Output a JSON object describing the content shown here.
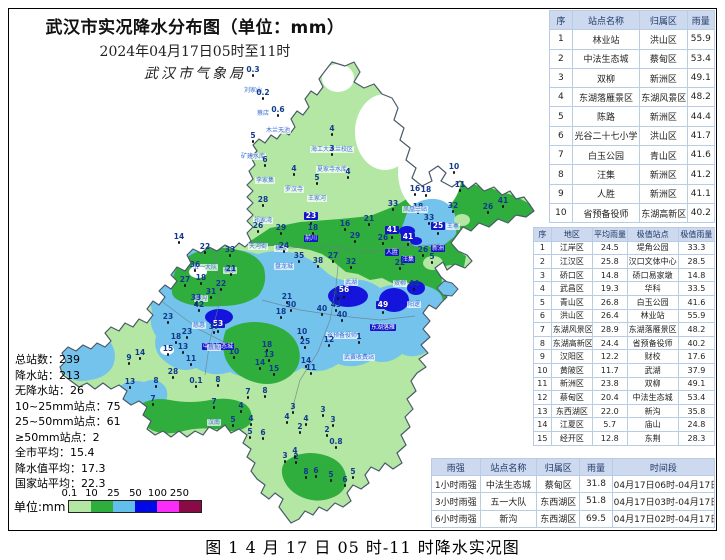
{
  "title": "武汉市实况降水分布图（单位：mm）",
  "subtitle": "2024年04月17日05时至11时",
  "agency": "武汉市气象局",
  "caption": "图 1 4 月 17 日 05 时-11 时降水实况图",
  "stats": [
    "总站数：239",
    "降水站：213",
    "无降水站：26",
    "10~25mm站点：75",
    "25~50mm站点：61",
    "≥50mm站点：2",
    "全市平均：15.4",
    "降水值平均：17.3",
    "国家站平均：22.3"
  ],
  "legend": {
    "label": "单位:mm",
    "ticks": [
      "0.1",
      "10",
      "25",
      "50",
      "100",
      "250"
    ],
    "colors": [
      "#b4e7a4",
      "#2fae3e",
      "#62bfec",
      "#0008e6",
      "#fa2cfa",
      "#8a0a45"
    ]
  },
  "map_colors": {
    "light_green": "#b4e7a4",
    "green": "#2fae3e",
    "light_blue": "#74c3ec",
    "dark_blue": "#1414dc",
    "none": "#ffffff",
    "boundary": "#4a5a6a"
  },
  "top_table": {
    "headers": [
      "序",
      "站点名称",
      "归属区",
      "雨量"
    ],
    "rows": [
      [
        "1",
        "林业站",
        "洪山区",
        "55.9"
      ],
      [
        "2",
        "中法生态城",
        "蔡甸区",
        "53.4"
      ],
      [
        "3",
        "双柳",
        "新洲区",
        "49.1"
      ],
      [
        "4",
        "东湖落雁景区",
        "东湖风景区",
        "48.2"
      ],
      [
        "5",
        "陈路",
        "新洲区",
        "44.4"
      ],
      [
        "6",
        "光谷二十七小学",
        "洪山区",
        "41.7"
      ],
      [
        "7",
        "白玉公园",
        "青山区",
        "41.6"
      ],
      [
        "8",
        "汪集",
        "新洲区",
        "41.2"
      ],
      [
        "9",
        "人胜",
        "新洲区",
        "41.1"
      ],
      [
        "10",
        "省预备役师",
        "东湖高新区",
        "40.2"
      ]
    ]
  },
  "district_table": {
    "headers": [
      "序",
      "地区",
      "平均雨量",
      "极值站点",
      "极值雨量"
    ],
    "rows": [
      [
        "1",
        "江岸区",
        "24.5",
        "堤角公园",
        "33.3"
      ],
      [
        "2",
        "江汉区",
        "25.8",
        "汉口文体中心",
        "28.5"
      ],
      [
        "3",
        "硚口区",
        "14.8",
        "硚口易家墩",
        "14.8"
      ],
      [
        "4",
        "武昌区",
        "19.3",
        "华科",
        "33.5"
      ],
      [
        "5",
        "青山区",
        "26.8",
        "白玉公园",
        "41.6"
      ],
      [
        "6",
        "洪山区",
        "26.4",
        "林业站",
        "55.9"
      ],
      [
        "7",
        "东湖风景区",
        "28.9",
        "东湖落雁景区",
        "48.2"
      ],
      [
        "8",
        "东湖高新区",
        "24.4",
        "省预备役师",
        "40.2"
      ],
      [
        "9",
        "汉阳区",
        "12.2",
        "财校",
        "17.6"
      ],
      [
        "10",
        "黄陂区",
        "11.7",
        "武湖",
        "37.9"
      ],
      [
        "11",
        "新洲区",
        "23.8",
        "双柳",
        "49.1"
      ],
      [
        "12",
        "蔡甸区",
        "20.4",
        "中法生态城",
        "53.4"
      ],
      [
        "13",
        "东西湖区",
        "22.0",
        "新沟",
        "35.8"
      ],
      [
        "14",
        "江夏区",
        "5.7",
        "庙山",
        "24.8"
      ],
      [
        "15",
        "经开区",
        "12.8",
        "东荆",
        "28.3"
      ]
    ]
  },
  "intensity_table": {
    "headers": [
      "雨强",
      "站点名称",
      "归属区",
      "雨量",
      "时间段"
    ],
    "rows": [
      [
        "1小时雨强",
        "中法生态城",
        "蔡甸区",
        "31.8",
        "04月17日06时-04月17日07时"
      ],
      [
        "3小时雨强",
        "五一大队",
        "东西湖区",
        "51.8",
        "04月17日03时-04月17日06时"
      ],
      [
        "6小时雨强",
        "新沟",
        "东西湖区",
        "69.5",
        "04月17日02时-04月17日08时"
      ]
    ]
  },
  "map": {
    "stations": [
      [
        253,
        76,
        "0.3",
        "刘家山",
        0
      ],
      [
        263,
        99,
        "0.2",
        "蔡店",
        0
      ],
      [
        278,
        116,
        "0.6",
        "木兰天池",
        0
      ],
      [
        253,
        142,
        "5",
        "矿建水库",
        0
      ],
      [
        332,
        135,
        "4",
        "海工大木兰校区",
        0
      ],
      [
        332,
        155,
        "3",
        "夏家寺水库",
        0
      ],
      [
        265,
        166,
        "6",
        "李家集",
        0
      ],
      [
        294,
        175,
        "4",
        "罗汉寺",
        0
      ],
      [
        317,
        184,
        "5",
        "王家河",
        0
      ],
      [
        348,
        178,
        "4",
        "",
        0
      ],
      [
        263,
        206,
        "28",
        "祁家湾",
        0
      ],
      [
        311,
        213,
        "23",
        "前川",
        1
      ],
      [
        258,
        232,
        "26",
        "天河街",
        0
      ],
      [
        281,
        234,
        "29",
        "横店",
        0
      ],
      [
        313,
        234,
        "18",
        "",
        0
      ],
      [
        345,
        230,
        "16",
        "",
        0
      ],
      [
        369,
        225,
        "21",
        "",
        0
      ],
      [
        355,
        242,
        "29",
        "",
        0
      ],
      [
        284,
        252,
        "24",
        "盘龙城",
        0
      ],
      [
        299,
        262,
        "35",
        "",
        0
      ],
      [
        318,
        267,
        "38",
        "",
        0
      ],
      [
        333,
        262,
        "27",
        "",
        0
      ],
      [
        351,
        268,
        "32",
        "武湖",
        0
      ],
      [
        393,
        210,
        "33",
        "",
        0
      ],
      [
        418,
        213,
        "18",
        "",
        0
      ],
      [
        415,
        195,
        "16",
        "凤凰三站",
        0
      ],
      [
        426,
        196,
        "18",
        "",
        0
      ],
      [
        429,
        224,
        "33",
        "",
        0
      ],
      [
        438,
        223,
        "25",
        "新洲",
        1
      ],
      [
        453,
        212,
        "32",
        "王寨",
        0
      ],
      [
        460,
        191,
        "11",
        "",
        0
      ],
      [
        454,
        173,
        "10",
        "",
        0
      ],
      [
        488,
        213,
        "26",
        "",
        0
      ],
      [
        503,
        207,
        "41",
        "",
        0
      ],
      [
        392,
        227,
        "41",
        "人胜",
        1
      ],
      [
        408,
        234,
        "41",
        "汪集",
        1
      ],
      [
        423,
        256,
        "26",
        "",
        0
      ],
      [
        400,
        269,
        "22",
        "双柳",
        0
      ],
      [
        432,
        263,
        "5",
        "",
        0
      ],
      [
        383,
        244,
        "26",
        "",
        0
      ],
      [
        179,
        243,
        "14",
        "",
        0
      ],
      [
        205,
        253,
        "22",
        "五一大队",
        0
      ],
      [
        230,
        256,
        "33",
        "柏泉",
        0
      ],
      [
        195,
        271,
        "36",
        "",
        0
      ],
      [
        201,
        284,
        "18",
        "新沟",
        0
      ],
      [
        231,
        275,
        "21",
        "",
        0
      ],
      [
        185,
        286,
        "27",
        "",
        0
      ],
      [
        221,
        290,
        "22",
        "",
        0
      ],
      [
        211,
        298,
        "31",
        "",
        0
      ],
      [
        196,
        304,
        "33",
        "",
        0
      ],
      [
        199,
        311,
        "42",
        "慈惠",
        0
      ],
      [
        218,
        321,
        "53",
        "中法生态城",
        1
      ],
      [
        168,
        323,
        "23",
        "",
        0
      ],
      [
        214,
        333,
        "37",
        "蔡甸",
        0
      ],
      [
        187,
        338,
        "23",
        "",
        0
      ],
      [
        176,
        343,
        "18",
        "",
        0
      ],
      [
        183,
        353,
        "13",
        "",
        0
      ],
      [
        168,
        355,
        "15",
        "",
        0
      ],
      [
        191,
        365,
        "11",
        "",
        0
      ],
      [
        173,
        378,
        "28",
        "",
        0
      ],
      [
        196,
        387,
        "0.1",
        "",
        0
      ],
      [
        218,
        386,
        "8",
        "",
        0
      ],
      [
        140,
        359,
        "14",
        "",
        0
      ],
      [
        129,
        364,
        "9",
        "",
        0
      ],
      [
        130,
        388,
        "13",
        "",
        0
      ],
      [
        156,
        387,
        "8",
        "",
        0
      ],
      [
        153,
        405,
        "7",
        "",
        0
      ],
      [
        287,
        303,
        "21",
        "",
        0
      ],
      [
        291,
        311,
        "30",
        "",
        0
      ],
      [
        281,
        318,
        "18",
        "",
        0
      ],
      [
        322,
        315,
        "40",
        "",
        0
      ],
      [
        336,
        311,
        "43",
        "",
        0
      ],
      [
        342,
        321,
        "40",
        "省预备役师",
        0
      ],
      [
        338,
        299,
        "42",
        "",
        0
      ],
      [
        344,
        287,
        "56",
        "",
        1
      ],
      [
        383,
        302,
        "49",
        "东湖落雁",
        1
      ],
      [
        414,
        290,
        "44",
        "阳逻",
        0
      ],
      [
        329,
        346,
        "12",
        "",
        0
      ],
      [
        306,
        367,
        "14",
        "",
        0
      ],
      [
        305,
        348,
        "25",
        "",
        0
      ],
      [
        302,
        338,
        "10",
        "",
        0
      ],
      [
        311,
        374,
        "11",
        "",
        0
      ],
      [
        359,
        343,
        "1",
        "武黄收费站",
        0
      ],
      [
        267,
        351,
        "18",
        "",
        0
      ],
      [
        269,
        361,
        "13",
        "",
        0
      ],
      [
        260,
        369,
        "14",
        "",
        0
      ],
      [
        274,
        375,
        "15",
        "",
        0
      ],
      [
        234,
        358,
        "10",
        "",
        0
      ],
      [
        265,
        397,
        "8",
        "",
        0
      ],
      [
        248,
        398,
        "7",
        "",
        0
      ],
      [
        214,
        408,
        "7",
        "汉南",
        0
      ],
      [
        241,
        412,
        "4",
        "",
        0
      ],
      [
        233,
        426,
        "5",
        "",
        0
      ],
      [
        251,
        425,
        "4",
        "",
        0
      ],
      [
        293,
        413,
        "3",
        "",
        0
      ],
      [
        287,
        423,
        "4",
        "",
        0
      ],
      [
        300,
        433,
        "2",
        "",
        0
      ],
      [
        263,
        439,
        "6",
        "",
        0
      ],
      [
        250,
        438,
        "5",
        "",
        0
      ],
      [
        323,
        416,
        "3",
        "",
        0
      ],
      [
        306,
        425,
        "4",
        "",
        0
      ],
      [
        333,
        426,
        "3",
        "",
        0
      ],
      [
        327,
        436,
        "2",
        "",
        0
      ],
      [
        336,
        448,
        "0.8",
        "",
        0
      ],
      [
        285,
        462,
        "3",
        "",
        0
      ],
      [
        296,
        463,
        "2",
        "",
        0
      ],
      [
        295,
        457,
        "4",
        "",
        0
      ],
      [
        306,
        478,
        "8",
        "",
        0
      ],
      [
        316,
        477,
        "6",
        "",
        0
      ],
      [
        331,
        481,
        "5",
        "",
        0
      ],
      [
        345,
        486,
        "6",
        "",
        0
      ],
      [
        353,
        478,
        "5",
        "",
        0
      ]
    ]
  }
}
